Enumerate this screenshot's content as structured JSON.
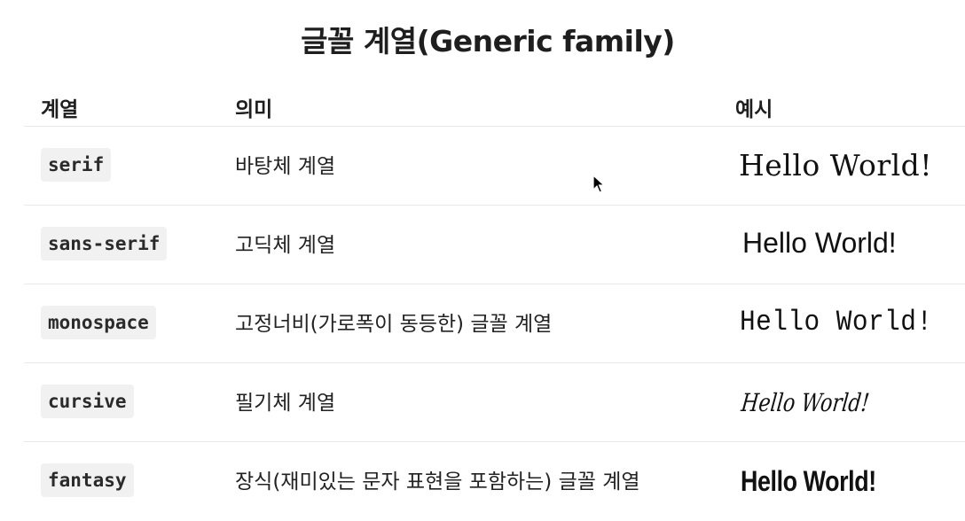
{
  "title": "글꼴 계열(Generic family)",
  "table": {
    "headers": [
      "계열",
      "의미",
      "예시"
    ],
    "rows": [
      {
        "family": "serif",
        "meaning": "바탕체 계열",
        "example": "Hello World!"
      },
      {
        "family": "sans-serif",
        "meaning": "고딕체 계열",
        "example": "Hello World!"
      },
      {
        "family": "monospace",
        "meaning": "고정너비(가로폭이 동등한) 글꼴 계열",
        "example": "Hello World!"
      },
      {
        "family": "cursive",
        "meaning": "필기체 계열",
        "example": "Hello World!"
      },
      {
        "family": "fantasy",
        "meaning": "장식(재미있는 문자 표현을 포함하는) 글꼴 계열",
        "example": "Hello World!"
      }
    ]
  },
  "cursor_icon": "mouse-pointer-icon",
  "colors": {
    "code_bg": "#f1f1f1",
    "divider": "#e8e8e8",
    "text": "#1f1f1f"
  }
}
